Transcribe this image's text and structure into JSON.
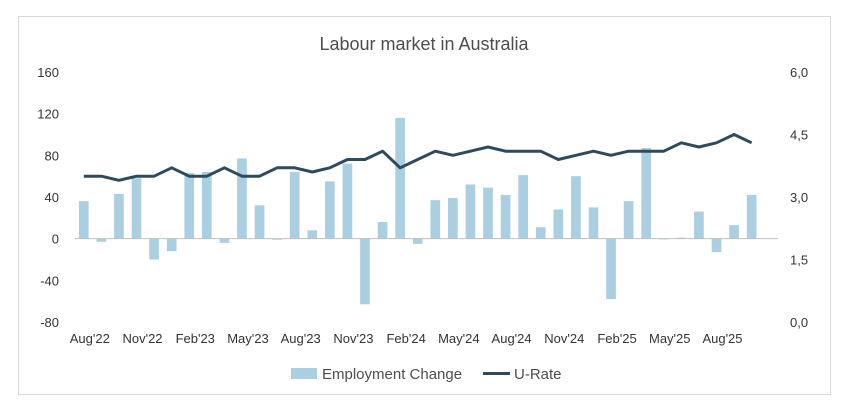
{
  "chart_data": {
    "type": "bar",
    "title": "Labour market in Australia",
    "xlabel": "",
    "ylabel": "",
    "y2label": "",
    "ylim": [
      -80,
      160
    ],
    "y2lim": [
      0,
      6
    ],
    "yticks": [
      "-80",
      "-40",
      "0",
      "40",
      "80",
      "120",
      "160"
    ],
    "y2ticks": [
      "0,0",
      "1,5",
      "3,0",
      "4,5",
      "6,0"
    ],
    "xtick_labels": [
      {
        "index": 0,
        "label": "Aug'22"
      },
      {
        "index": 3,
        "label": "Nov'22"
      },
      {
        "index": 6,
        "label": "Feb'23"
      },
      {
        "index": 9,
        "label": "May'23"
      },
      {
        "index": 12,
        "label": "Aug'23"
      },
      {
        "index": 15,
        "label": "Nov'23"
      },
      {
        "index": 18,
        "label": "Feb'24"
      },
      {
        "index": 21,
        "label": "May'24"
      },
      {
        "index": 24,
        "label": "Aug'24"
      },
      {
        "index": 27,
        "label": "Nov'24"
      },
      {
        "index": 30,
        "label": "Feb'25"
      },
      {
        "index": 33,
        "label": "May'25"
      },
      {
        "index": 36,
        "label": "Aug'25"
      }
    ],
    "categories": [
      "Aug'22",
      "Sep'22",
      "Oct'22",
      "Nov'22",
      "Dec'22",
      "Jan'23",
      "Feb'23",
      "Mar'23",
      "Apr'23",
      "May'23",
      "Jun'23",
      "Jul'23",
      "Aug'23",
      "Sep'23",
      "Oct'23",
      "Nov'23",
      "Dec'23",
      "Jan'24",
      "Feb'24",
      "Mar'24",
      "Apr'24",
      "May'24",
      "Jun'24",
      "Jul'24",
      "Aug'24",
      "Sep'24",
      "Oct'24",
      "Nov'24",
      "Dec'24",
      "Jan'25",
      "Feb'25",
      "Mar'25",
      "Apr'25",
      "May'25",
      "Jun'25",
      "Jul'25",
      "Aug'25",
      "Sep'25",
      "Oct'25",
      "Nov'25"
    ],
    "series": [
      {
        "name": "Employment Change",
        "type": "bar",
        "axis": "left",
        "color": "#a9cfe0",
        "values": [
          36,
          -3,
          43,
          58,
          -20,
          -12,
          63,
          64,
          -4,
          77,
          32,
          -1,
          64,
          8,
          55,
          72,
          -63,
          16,
          116,
          -5,
          37,
          39,
          52,
          49,
          42,
          61,
          11,
          28,
          60,
          30,
          -58,
          36,
          87,
          0,
          1,
          26,
          -13,
          13,
          42,
          null
        ]
      },
      {
        "name": "U-Rate",
        "type": "line",
        "axis": "right",
        "color": "#2f4a5a",
        "values": [
          3.5,
          3.5,
          3.4,
          3.5,
          3.5,
          3.7,
          3.5,
          3.5,
          3.7,
          3.5,
          3.5,
          3.7,
          3.7,
          3.6,
          3.7,
          3.9,
          3.9,
          4.1,
          3.7,
          3.9,
          4.1,
          4.0,
          4.1,
          4.2,
          4.1,
          4.1,
          4.1,
          3.9,
          4.0,
          4.1,
          4.0,
          4.1,
          4.1,
          4.1,
          4.3,
          4.2,
          4.3,
          4.5,
          4.3,
          null
        ]
      }
    ],
    "grid": false,
    "legend": "bottom-center"
  }
}
